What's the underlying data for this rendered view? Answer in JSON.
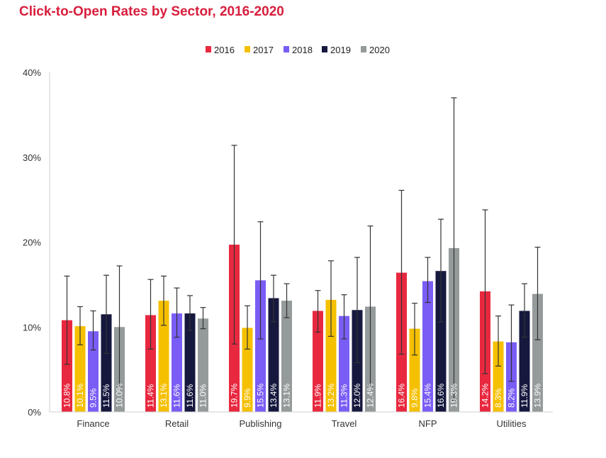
{
  "title": "Click-to-Open Rates by Sector, 2016-2020",
  "chart_data": {
    "type": "bar",
    "title": "Click-to-Open Rates by Sector, 2016-2020",
    "xlabel": "",
    "ylabel": "",
    "categories": [
      "Finance",
      "Retail",
      "Publishing",
      "Travel",
      "NFP",
      "Utilities"
    ],
    "ylim": [
      0,
      40
    ],
    "yticks": [
      0,
      10,
      20,
      30,
      40
    ],
    "ytick_labels": [
      "0%",
      "10%",
      "20%",
      "30%",
      "40%"
    ],
    "legend_position": "top-center",
    "grid": false,
    "error_bars": true,
    "series": [
      {
        "name": "2016",
        "color": "#e8283f",
        "values": [
          10.8,
          11.4,
          19.7,
          11.9,
          16.4,
          14.2
        ],
        "labels": [
          "10.8%",
          "11.4%",
          "19.7%",
          "11.9%",
          "16.4%",
          "14.2%"
        ],
        "err_low": [
          5.6,
          7.4,
          8.0,
          9.4,
          6.8,
          4.5
        ],
        "err_high": [
          16.0,
          15.6,
          31.4,
          14.3,
          26.1,
          23.8
        ]
      },
      {
        "name": "2017",
        "color": "#f5c000",
        "values": [
          10.1,
          13.1,
          9.9,
          13.2,
          9.8,
          8.3
        ],
        "labels": [
          "10.1%",
          "13.1%",
          "9.9%",
          "13.2%",
          "9.8%",
          "8.3%"
        ],
        "err_low": [
          7.9,
          10.2,
          7.4,
          8.9,
          6.7,
          5.4
        ],
        "err_high": [
          12.4,
          16.0,
          12.5,
          17.8,
          12.8,
          11.3
        ]
      },
      {
        "name": "2018",
        "color": "#7a5df5",
        "values": [
          9.5,
          11.6,
          15.5,
          11.3,
          15.4,
          8.2
        ],
        "labels": [
          "9.5%",
          "11.6%",
          "15.5%",
          "11.3%",
          "15.4%",
          "8.2%"
        ],
        "err_low": [
          7.3,
          8.8,
          8.6,
          8.6,
          12.9,
          3.6
        ],
        "err_high": [
          11.9,
          14.6,
          22.4,
          13.8,
          18.2,
          12.6
        ]
      },
      {
        "name": "2019",
        "color": "#16183e",
        "values": [
          11.5,
          11.6,
          13.4,
          12.0,
          16.6,
          11.9
        ],
        "labels": [
          "11.5%",
          "11.6%",
          "13.4%",
          "12.0%",
          "16.6%",
          "11.9%"
        ],
        "err_low": [
          6.9,
          9.6,
          10.6,
          5.8,
          10.6,
          8.8
        ],
        "err_high": [
          16.1,
          13.7,
          16.1,
          18.2,
          22.7,
          15.1
        ]
      },
      {
        "name": "2020",
        "color": "#959a9a",
        "values": [
          10.0,
          11.0,
          13.1,
          12.4,
          19.3,
          13.9
        ],
        "labels": [
          "10.0%",
          "11.0%",
          "13.1%",
          "12.4%",
          "19.3%",
          "13.9%"
        ],
        "err_low": [
          3.0,
          9.8,
          11.1,
          3.0,
          1.4,
          8.5
        ],
        "err_high": [
          17.2,
          12.3,
          15.1,
          21.9,
          37.0,
          19.4
        ]
      }
    ]
  }
}
